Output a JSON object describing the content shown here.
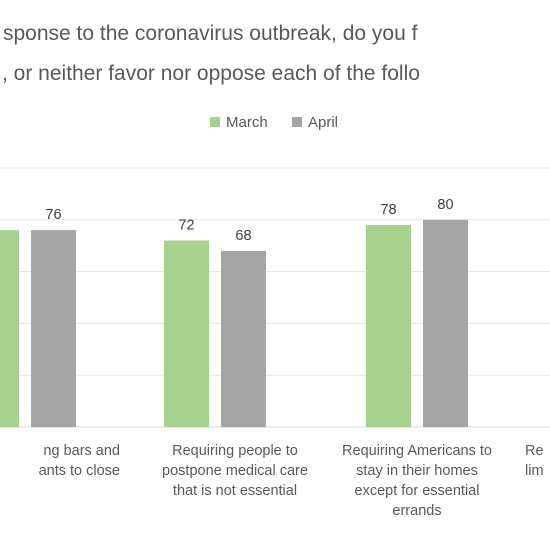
{
  "chart_data": {
    "type": "bar",
    "title_lines": [
      "sponse to the coronavirus outbreak, do you f",
      ", or neither  favor nor oppose each of the follo"
    ],
    "categories": [
      [
        "ng bars and",
        "ants to close"
      ],
      [
        "Requiring people to",
        "postpone medical care",
        "that is not essential"
      ],
      [
        "Requiring Americans to",
        "stay in their homes",
        "except for essential",
        "errands"
      ],
      [
        "Re",
        "lim"
      ]
    ],
    "series": [
      {
        "name": "March",
        "color": "#a9d18e",
        "values": [
          76,
          72,
          78,
          null
        ]
      },
      {
        "name": "April",
        "color": "#a5a5a5",
        "values": [
          76,
          68,
          80,
          null
        ]
      }
    ],
    "data_labels": [
      [
        null,
        "72",
        "78",
        null
      ],
      [
        "76",
        "68",
        "80",
        null
      ]
    ],
    "ylim": [
      0,
      100
    ],
    "grid": true,
    "legend_position": "top"
  }
}
